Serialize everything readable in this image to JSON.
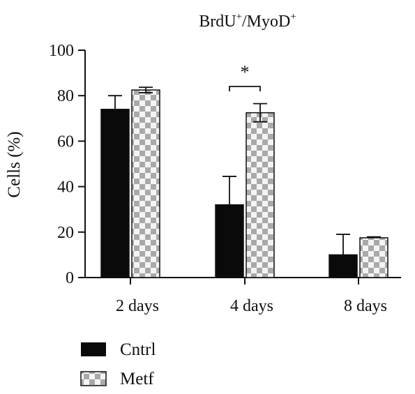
{
  "chart_data": {
    "type": "bar",
    "title_main": "BrdU",
    "title_sup1": "+",
    "title_mid": "/MyoD",
    "title_sup2": "+",
    "ylabel": "Cells (%)",
    "xlabel": "",
    "ylim": [
      0,
      100
    ],
    "yticks": [
      "0",
      "20",
      "40",
      "60",
      "80",
      "100"
    ],
    "categories": [
      "2 days",
      "4 days",
      "8 days"
    ],
    "series": [
      {
        "name": "Cntrl",
        "values": [
          74,
          32,
          10
        ],
        "errors": [
          6,
          12.5,
          9
        ],
        "color": "#0a0a0a",
        "pattern": "solid"
      },
      {
        "name": "Metf",
        "values": [
          82.5,
          72.5,
          17.5
        ],
        "errors": [
          1.2,
          4,
          0.4
        ],
        "color": "#a9a9a9",
        "pattern": "checker"
      }
    ],
    "annotations": [
      {
        "text": "*",
        "category": "4 days"
      }
    ],
    "legend_position": "bottom-left",
    "grid": false
  }
}
